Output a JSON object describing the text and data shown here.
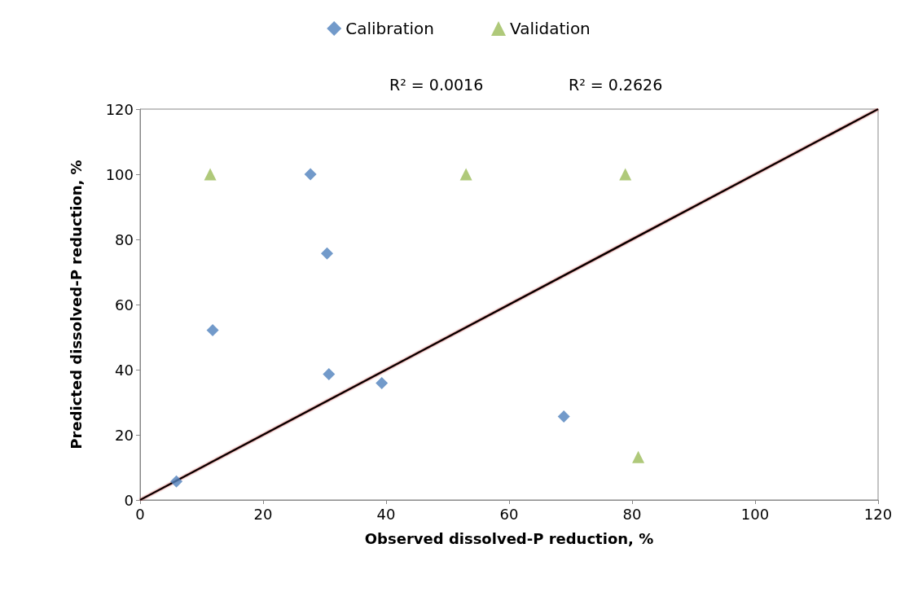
{
  "chart_data": {
    "type": "scatter",
    "xlabel": "Observed dissolved-P reduction, %",
    "ylabel": "Predicted dissolved-P reduction, %",
    "annotations": [
      "R² = 0.0016",
      "R² = 0.2626"
    ],
    "series": [
      {
        "name": "Calibration",
        "color": "#4f81bd",
        "marker": "diamond",
        "x": [
          5.9,
          11.8,
          27.7,
          30.4,
          30.7,
          39.3,
          68.9
        ],
        "values": [
          5.7,
          52.1,
          100,
          75.7,
          38.6,
          35.9,
          25.6
        ]
      },
      {
        "name": "Validation",
        "color": "#9bbb59",
        "marker": "triangle",
        "x": [
          11.4,
          53.0,
          78.9,
          81.0
        ],
        "values": [
          100,
          100,
          100,
          13.2
        ]
      },
      {
        "type": "line",
        "color": "#000000",
        "marker": "none",
        "x": [
          0,
          120
        ],
        "values": [
          0,
          120
        ]
      }
    ],
    "xlim": [
      0,
      120
    ],
    "ylim": [
      0,
      120
    ],
    "xticks": [
      0,
      20,
      40,
      60,
      80,
      100,
      120
    ],
    "yticks": [
      0,
      20,
      40,
      60,
      80,
      100,
      120
    ],
    "grid": false,
    "legend": "top"
  }
}
